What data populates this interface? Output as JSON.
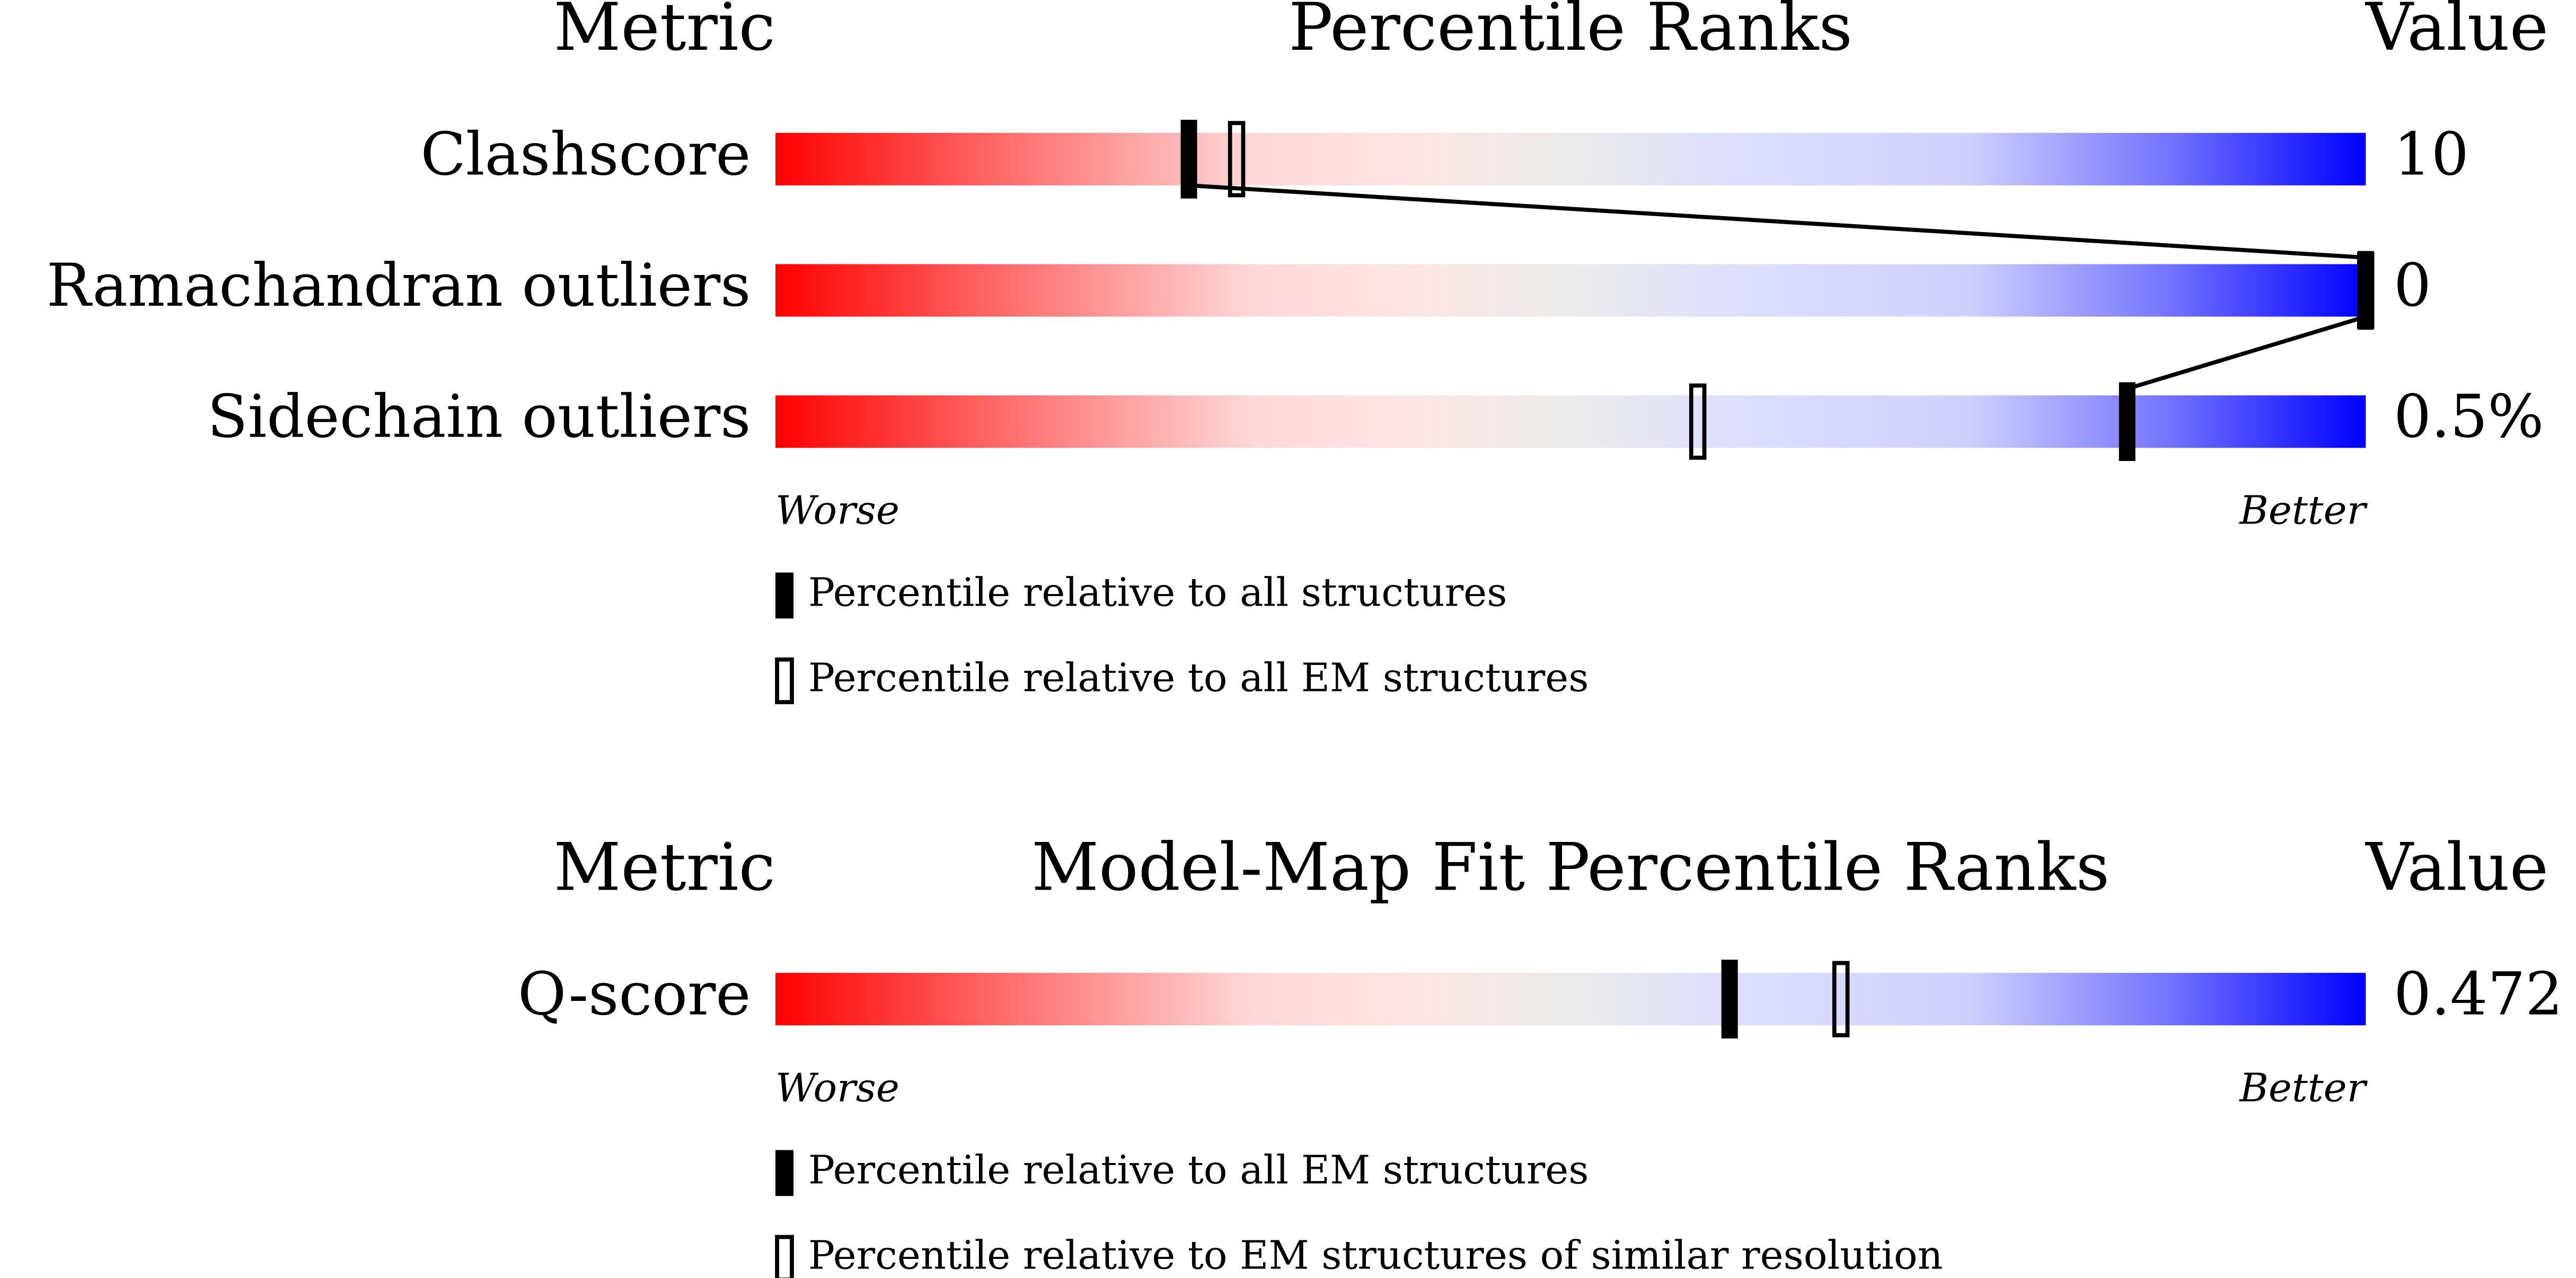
{
  "xlim": [
    0,
    100
  ],
  "panels": [
    {
      "header": {
        "metric": "Metric",
        "title": "Percentile Ranks",
        "value": "Value"
      },
      "rows": [
        {
          "metric": "Clashscore",
          "value": "10",
          "percentile_filled": 26,
          "percentile_open": 29
        },
        {
          "metric": "Ramachandran outliers",
          "value": "0",
          "percentile_filled": 100,
          "percentile_open": 100
        },
        {
          "metric": "Sidechain outliers",
          "value": "0.5%",
          "percentile_filled": 85,
          "percentile_open": 58
        }
      ],
      "scale": {
        "worse": "Worse",
        "better": "Better"
      },
      "legend": {
        "filled": "Percentile relative to all structures",
        "open": "Percentile relative to all EM structures"
      }
    },
    {
      "header": {
        "metric": "Metric",
        "title": "Model-Map Fit Percentile Ranks",
        "value": "Value"
      },
      "rows": [
        {
          "metric": "Q-score",
          "value": "0.472",
          "percentile_filled": 60,
          "percentile_open": 67
        }
      ],
      "scale": {
        "worse": "Worse",
        "better": "Better"
      },
      "legend": {
        "filled": "Percentile relative to all EM structures",
        "open": "Percentile relative to EM structures of similar resolution"
      }
    }
  ]
}
